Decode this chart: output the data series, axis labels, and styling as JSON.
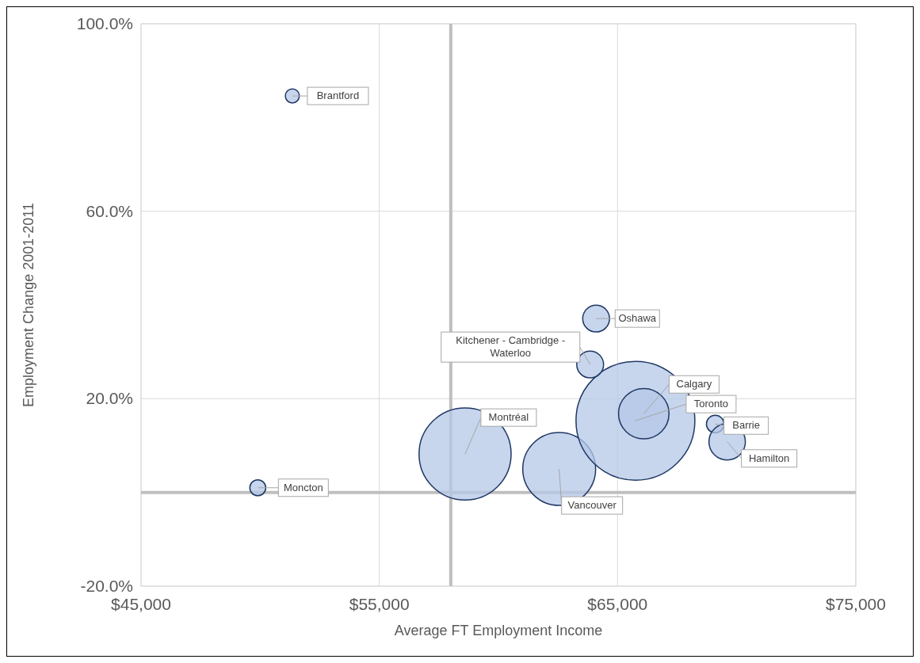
{
  "chart_data": {
    "type": "bubble",
    "xlabel": "Average FT Employment Income",
    "ylabel": "Employment Change 2001-2011",
    "x": [
      51350,
      49900,
      58600,
      62550,
      65750,
      66100,
      64100,
      63850,
      69100,
      69600
    ],
    "values": [
      84.6,
      1.0,
      8.2,
      5.0,
      15.3,
      16.8,
      37.1,
      27.3,
      14.6,
      10.8
    ],
    "sizes": [
      0.014,
      0.018,
      0.6,
      0.376,
      1,
      0.18,
      0.051,
      0.051,
      0.022,
      0.094
    ],
    "color": "#b4c7e7",
    "marker": "circle",
    "grid": true,
    "xlim": [
      45000,
      75000
    ],
    "xticks": [
      {
        "value": 45000,
        "label": "$45,000"
      },
      {
        "value": 55000,
        "label": "$55,000"
      },
      {
        "value": 65000,
        "label": "$65,000"
      },
      {
        "value": 75000,
        "label": "$75,000"
      }
    ],
    "ylim": [
      -20,
      100
    ],
    "yticks": [
      {
        "value": -20,
        "label": "-20.0%"
      },
      {
        "value": 20,
        "label": "20.0%"
      },
      {
        "value": 60,
        "label": "60.0%"
      },
      {
        "value": 100,
        "label": "100.0%"
      }
    ],
    "ref_lines": [
      {
        "axis": "x",
        "value": 58000,
        "color": "#bfbfbf"
      },
      {
        "axis": "y",
        "value": 0,
        "color": "#bfbfbf"
      }
    ],
    "annotations": [
      {
        "text": "Brantford",
        "x": 51350,
        "y": 84.6
      },
      {
        "text": "Moncton",
        "x": 49900,
        "y": 1.0
      },
      {
        "text": "Montréal",
        "x": 58600,
        "y": 8.2
      },
      {
        "text": "Vancouver",
        "x": 62550,
        "y": 5.0
      },
      {
        "text": "Toronto",
        "x": 65750,
        "y": 15.3
      },
      {
        "text": "Calgary",
        "x": 66100,
        "y": 16.8
      },
      {
        "text": "Oshawa",
        "x": 64100,
        "y": 37.1
      },
      {
        "text": "Kitchener - Cambridge - Waterloo",
        "x": 63850,
        "y": 27.3
      },
      {
        "text": "Barrie",
        "x": 69100,
        "y": 14.6
      },
      {
        "text": "Hamilton",
        "x": 69600,
        "y": 10.8
      }
    ]
  }
}
